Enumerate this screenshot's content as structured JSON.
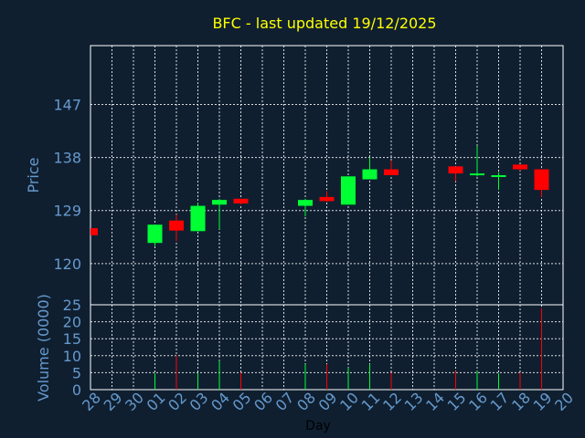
{
  "chart_data": [
    {
      "type": "candlestick",
      "title": "BFC - last updated 19/12/2025",
      "xlabel": "",
      "ylabel": "Price",
      "ylim": [
        113,
        157
      ],
      "yticks": [
        120,
        129,
        138,
        147
      ],
      "grid": true,
      "colors": {
        "up": "#00ff33",
        "down": "#ff0000",
        "title": "#ffff00",
        "axis_text": "#6699cc",
        "grid": "#ffffff"
      },
      "x": [
        "28",
        "29",
        "30",
        "01",
        "02",
        "03",
        "04",
        "05",
        "06",
        "07",
        "08",
        "09",
        "10",
        "11",
        "12",
        "13",
        "14",
        "15",
        "16",
        "17",
        "18",
        "19",
        "20"
      ],
      "candles": [
        {
          "day": "28",
          "open": 126.0,
          "high": 126.0,
          "low": 124.8,
          "close": 124.8
        },
        {
          "day": "01",
          "open": 123.5,
          "high": 126.6,
          "low": 123.0,
          "close": 126.6
        },
        {
          "day": "02",
          "open": 127.3,
          "high": 128.3,
          "low": 123.8,
          "close": 125.6
        },
        {
          "day": "03",
          "open": 125.5,
          "high": 130.3,
          "low": 125.5,
          "close": 129.8
        },
        {
          "day": "04",
          "open": 130.0,
          "high": 131.0,
          "low": 125.8,
          "close": 130.8
        },
        {
          "day": "05",
          "open": 131.0,
          "high": 131.0,
          "low": 130.0,
          "close": 130.2
        },
        {
          "day": "08",
          "open": 129.8,
          "high": 131.0,
          "low": 128.0,
          "close": 130.8
        },
        {
          "day": "09",
          "open": 131.3,
          "high": 132.3,
          "low": 130.5,
          "close": 130.6
        },
        {
          "day": "10",
          "open": 130.0,
          "high": 134.8,
          "low": 130.0,
          "close": 134.8
        },
        {
          "day": "11",
          "open": 134.3,
          "high": 138.0,
          "low": 134.3,
          "close": 136.0
        },
        {
          "day": "12",
          "open": 136.0,
          "high": 137.5,
          "low": 135.0,
          "close": 135.0
        },
        {
          "day": "15",
          "open": 136.5,
          "high": 136.5,
          "low": 134.0,
          "close": 135.3
        },
        {
          "day": "16",
          "open": 135.0,
          "high": 140.0,
          "low": 134.8,
          "close": 135.3
        },
        {
          "day": "17",
          "open": 134.8,
          "high": 135.5,
          "low": 132.5,
          "close": 135.0
        },
        {
          "day": "18",
          "open": 136.8,
          "high": 136.8,
          "low": 135.8,
          "close": 136.0
        },
        {
          "day": "19",
          "open": 136.0,
          "high": 136.0,
          "low": 131.3,
          "close": 132.5
        }
      ]
    },
    {
      "type": "bar",
      "title": "",
      "xlabel": "Day",
      "ylabel": "Volume (0000)",
      "ylim": [
        0,
        25
      ],
      "yticks": [
        0,
        5,
        10,
        15,
        20,
        25
      ],
      "grid": true,
      "x": [
        "28",
        "29",
        "30",
        "01",
        "02",
        "03",
        "04",
        "05",
        "06",
        "07",
        "08",
        "09",
        "10",
        "11",
        "12",
        "13",
        "14",
        "15",
        "16",
        "17",
        "18",
        "19",
        "20"
      ],
      "bars": [
        {
          "day": "01",
          "value": 4.8,
          "direction": "up"
        },
        {
          "day": "02",
          "value": 10.0,
          "direction": "down"
        },
        {
          "day": "03",
          "value": 5.0,
          "direction": "up"
        },
        {
          "day": "04",
          "value": 8.5,
          "direction": "up"
        },
        {
          "day": "05",
          "value": 5.0,
          "direction": "down"
        },
        {
          "day": "08",
          "value": 7.5,
          "direction": "up"
        },
        {
          "day": "09",
          "value": 7.5,
          "direction": "down"
        },
        {
          "day": "10",
          "value": 6.5,
          "direction": "up"
        },
        {
          "day": "11",
          "value": 7.5,
          "direction": "up"
        },
        {
          "day": "12",
          "value": 5.0,
          "direction": "down"
        },
        {
          "day": "15",
          "value": 5.5,
          "direction": "down"
        },
        {
          "day": "16",
          "value": 5.5,
          "direction": "up"
        },
        {
          "day": "17",
          "value": 4.8,
          "direction": "up"
        },
        {
          "day": "18",
          "value": 5.0,
          "direction": "down"
        },
        {
          "day": "19",
          "value": 24.0,
          "direction": "down"
        }
      ]
    }
  ]
}
